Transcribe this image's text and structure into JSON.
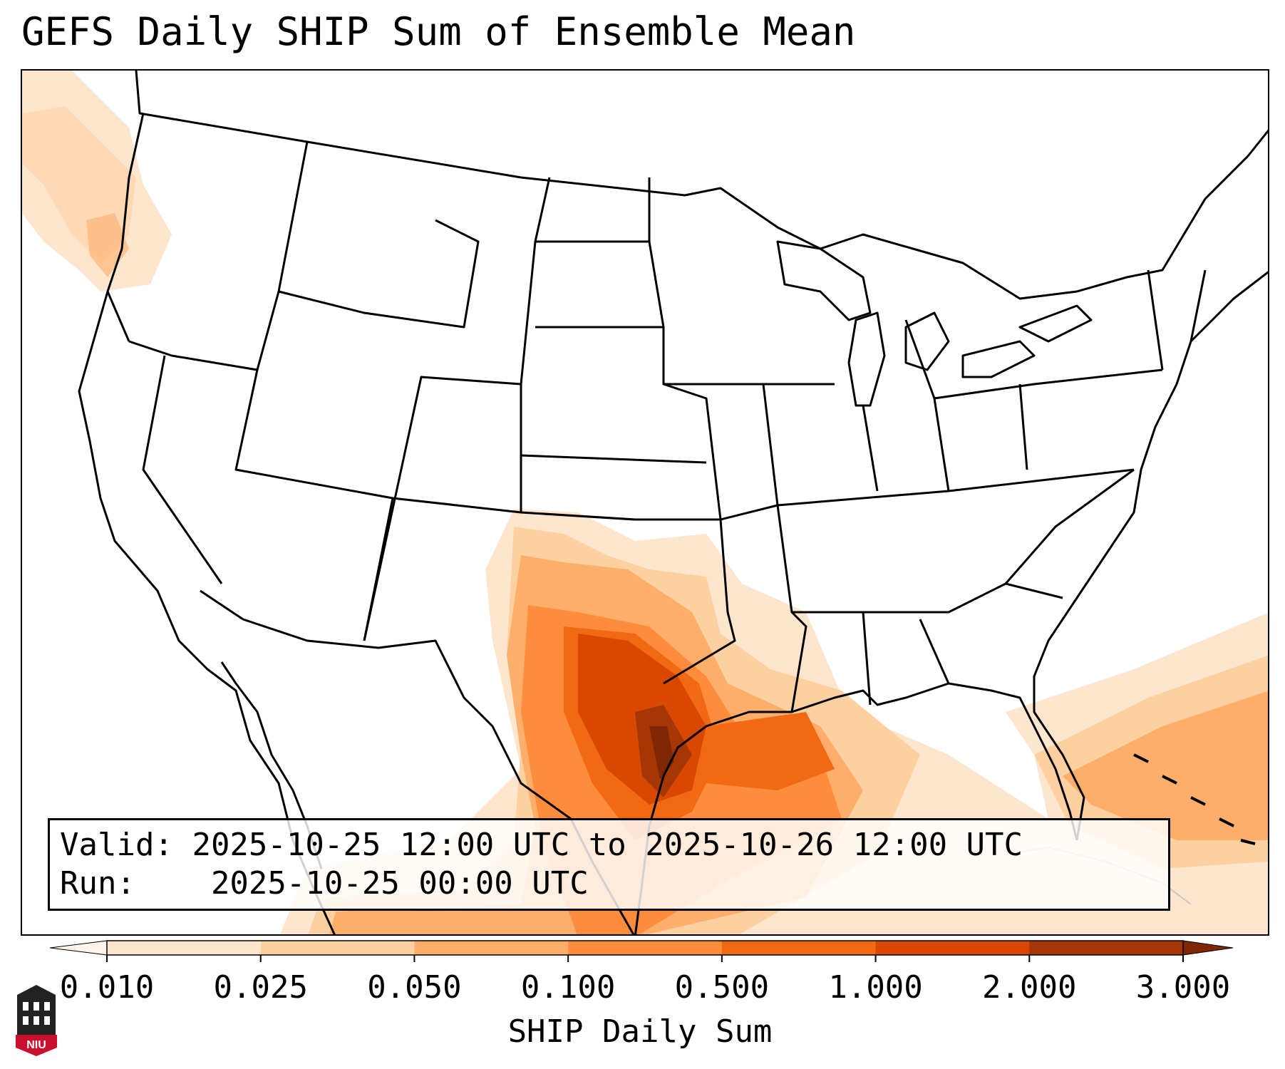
{
  "title": "GEFS Daily SHIP Sum of Ensemble Mean",
  "info": {
    "valid_label": "Valid:",
    "valid_text": "2025-10-25 12:00 UTC to 2025-10-26 12:00 UTC",
    "run_label": "Run:",
    "run_text": "2025-10-25 00:00 UTC"
  },
  "colorbar": {
    "label": "SHIP Daily Sum",
    "ticks": [
      "0.010",
      "0.025",
      "0.050",
      "0.100",
      "0.500",
      "1.000",
      "2.000",
      "3.000"
    ],
    "colors": [
      "#fff5eb",
      "#fee6ce",
      "#fdd0a2",
      "#fdae6b",
      "#fd8d3c",
      "#f16913",
      "#d94801",
      "#a63603",
      "#7f2704"
    ]
  },
  "logo": {
    "text": "NIU",
    "icon": "university-tower-icon"
  }
}
